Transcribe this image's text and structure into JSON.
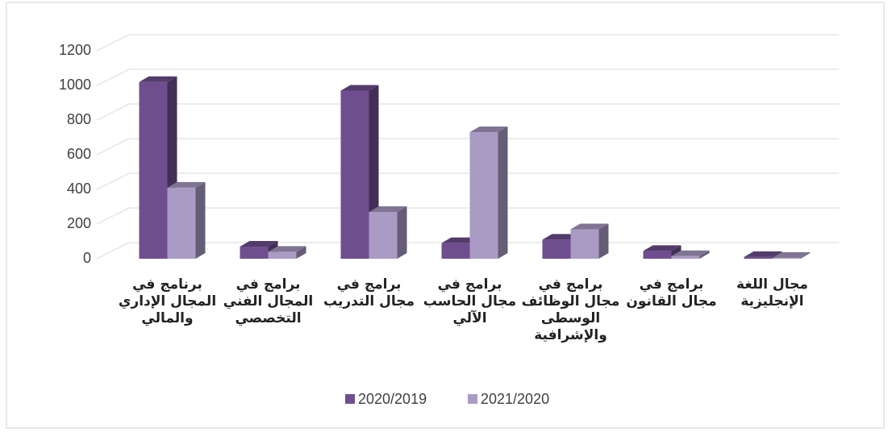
{
  "chart_data": {
    "type": "bar3d",
    "categories": [
      "برنامج في\nالمجال الإداري\nوالمالي",
      "برامج في\nالمجال الفني\nالتخصصي",
      "برامج في\nمجال التدريب",
      "برامج في\nمجال الحاسب\nالآلي",
      "برامج في\nمجال الوظائف\nالوسطى\nوالإشرافية",
      "برامج في\nمجال القانون",
      "مجال اللغة\nالإنجليزية"
    ],
    "series": [
      {
        "name": "2020/2019",
        "color": "#6f4e8f",
        "values": [
          1020,
          70,
          970,
          90,
          110,
          45,
          10
        ]
      },
      {
        "name": "2021/2020",
        "color": "#a99bc4",
        "values": [
          410,
          40,
          270,
          730,
          170,
          15,
          5
        ]
      }
    ],
    "ylim": [
      0,
      1200
    ],
    "yticks": [
      0,
      200,
      400,
      600,
      800,
      1000,
      1200
    ],
    "grid": true,
    "legend": "bottom"
  }
}
